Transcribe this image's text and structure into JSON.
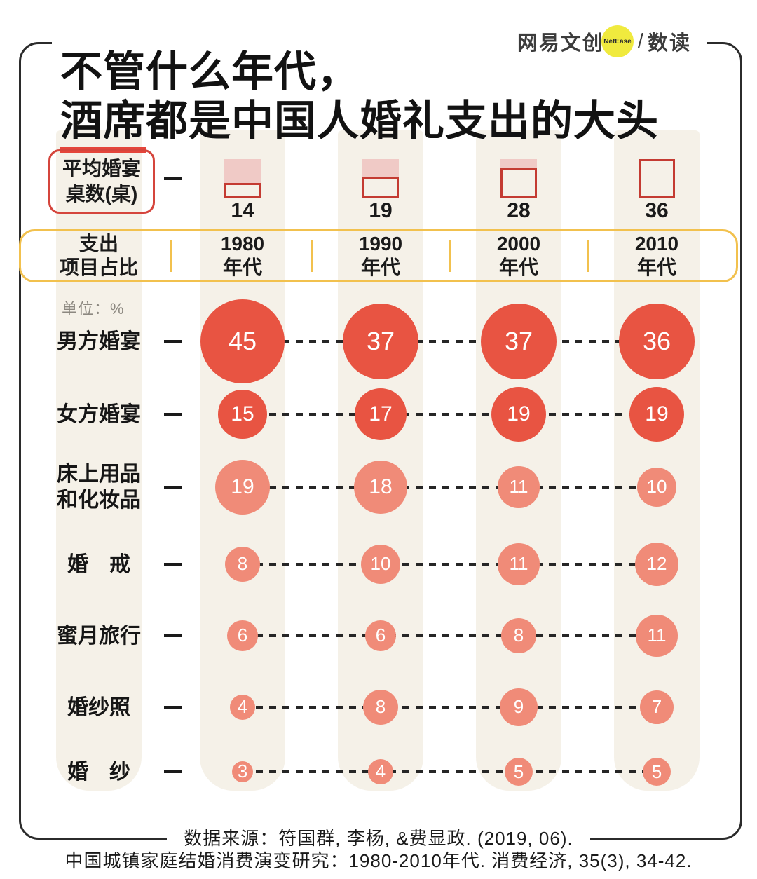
{
  "title": {
    "line1": "不管什么年代，",
    "line2_underlined": "酒席",
    "line2_rest": "都是中国人婚礼支出的大头"
  },
  "logo": {
    "brand": "网易文创",
    "badge": "NetEase",
    "slash": "/",
    "product": "数读"
  },
  "banquet_row": {
    "label_line1": "平均婚宴",
    "label_line2": "桌数(桌)",
    "values": [
      14,
      19,
      28,
      36
    ],
    "max_value": 36
  },
  "header": {
    "label_line1": "支出",
    "label_line2": "项目占比"
  },
  "unit_note": "单位：%",
  "chart_data": {
    "type": "scatter",
    "variant": "bubble-matrix",
    "title": "不管什么年代，酒席都是中国人婚礼支出的大头",
    "unit": "%",
    "categories": [
      "1980年代",
      "1990年代",
      "2000年代",
      "2010年代"
    ],
    "series": [
      {
        "name": "男方婚宴",
        "label_lines": [
          "男方婚宴"
        ],
        "values": [
          45,
          37,
          37,
          36
        ],
        "color": "#E85442"
      },
      {
        "name": "女方婚宴",
        "label_lines": [
          "女方婚宴"
        ],
        "values": [
          15,
          17,
          19,
          19
        ],
        "color": "#E85442"
      },
      {
        "name": "床上用品和化妆品",
        "label_lines": [
          "床上用品",
          "和化妆品"
        ],
        "values": [
          19,
          18,
          11,
          10
        ],
        "color": "#F08B78"
      },
      {
        "name": "婚戒",
        "label_lines": [
          "婚　戒"
        ],
        "values": [
          8,
          10,
          11,
          12
        ],
        "color": "#F08B78"
      },
      {
        "name": "蜜月旅行",
        "label_lines": [
          "蜜月旅行"
        ],
        "values": [
          6,
          6,
          8,
          11
        ],
        "color": "#F08B78"
      },
      {
        "name": "婚纱照",
        "label_lines": [
          "婚纱照"
        ],
        "values": [
          4,
          8,
          9,
          7
        ],
        "color": "#F08B78"
      },
      {
        "name": "婚纱",
        "label_lines": [
          "婚　纱"
        ],
        "values": [
          3,
          4,
          5,
          5
        ],
        "color": "#F08B78"
      }
    ],
    "sizing": "bubble area proportional to value",
    "banquet_tables": {
      "label": "平均婚宴桌数(桌)",
      "values": [
        14,
        19,
        28,
        36
      ]
    }
  },
  "footer": {
    "line1": "数据来源：符国群, 李杨, &费显政. (2019, 06).",
    "line2": "中国城镇家庭结婚消费演变研究：1980-2010年代. 消费经济, 35(3), 34-42."
  },
  "colors": {
    "accent_red": "#E85442",
    "salmon": "#F08B78",
    "strip": "#F5F1E8",
    "frame": "#2B2B2B",
    "yellow": "#F2C14E",
    "box_red": "#D5453C",
    "icon_outline": "#C43B32",
    "icon_fill": "#F0CAC6",
    "underline": "#E4453A",
    "logo_yellow": "#F0EA3E",
    "unit_gray": "#8C8880"
  }
}
